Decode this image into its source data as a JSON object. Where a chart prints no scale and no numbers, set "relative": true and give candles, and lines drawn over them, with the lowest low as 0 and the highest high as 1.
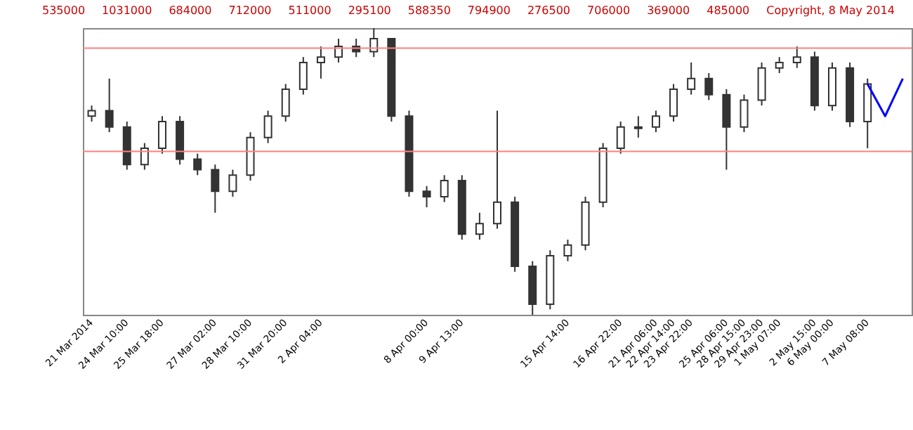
{
  "chart_data": {
    "type": "candlestick",
    "relative": true,
    "color": "#333333",
    "categories": [
      "21 Mar 2014",
      null,
      "24 Mar 10:00",
      null,
      "25 Mar 18:00",
      null,
      null,
      "27 Mar 02:00",
      null,
      "28 Mar 10:00",
      null,
      "31 Mar 20:00",
      null,
      "2 Apr 04:00",
      null,
      null,
      null,
      null,
      null,
      "8 Apr 00:00",
      null,
      "9 Apr 13:00",
      null,
      null,
      null,
      null,
      null,
      "15 Apr 14:00",
      null,
      null,
      "16 Apr 22:00",
      null,
      "21 Apr 06:00",
      "22 Apr 14:00",
      "23 Apr 22:00",
      null,
      "25 Apr 06:00",
      "28 Apr 15:00",
      "29 Apr 23:00",
      "1 May 07:00",
      null,
      "2 May 15:00",
      "6 May 00:00",
      null,
      "7 May 08:00",
      null,
      null
    ],
    "ohlc": [
      [
        0.693,
        0.73,
        0.674,
        0.712
      ],
      [
        0.712,
        0.824,
        0.637,
        0.655
      ],
      [
        0.655,
        0.674,
        0.506,
        0.524
      ],
      [
        0.524,
        0.599,
        0.506,
        0.581
      ],
      [
        0.581,
        0.693,
        0.562,
        0.674
      ],
      [
        0.674,
        0.693,
        0.524,
        0.543
      ],
      [
        0.543,
        0.562,
        0.487,
        0.506
      ],
      [
        0.506,
        0.524,
        0.356,
        0.431
      ],
      [
        0.431,
        0.506,
        0.412,
        0.487
      ],
      [
        0.487,
        0.637,
        0.468,
        0.618
      ],
      [
        0.618,
        0.712,
        0.599,
        0.693
      ],
      [
        0.693,
        0.805,
        0.674,
        0.787
      ],
      [
        0.787,
        0.899,
        0.768,
        0.88
      ],
      [
        0.88,
        0.936,
        0.824,
        0.899
      ],
      [
        0.899,
        0.963,
        0.88,
        0.936
      ],
      [
        0.936,
        0.963,
        0.899,
        0.918
      ],
      [
        0.918,
        1.0,
        0.899,
        0.963
      ],
      [
        0.963,
        0.963,
        0.674,
        0.693
      ],
      [
        0.693,
        0.712,
        0.412,
        0.431
      ],
      [
        0.431,
        0.449,
        0.375,
        0.412
      ],
      [
        0.412,
        0.487,
        0.393,
        0.468
      ],
      [
        0.468,
        0.487,
        0.262,
        0.281
      ],
      [
        0.281,
        0.356,
        0.262,
        0.318
      ],
      [
        0.318,
        0.712,
        0.3,
        0.393
      ],
      [
        0.393,
        0.412,
        0.15,
        0.169
      ],
      [
        0.169,
        0.187,
        0.0,
        0.037
      ],
      [
        0.037,
        0.225,
        0.019,
        0.206
      ],
      [
        0.206,
        0.262,
        0.187,
        0.243
      ],
      [
        0.243,
        0.412,
        0.225,
        0.393
      ],
      [
        0.393,
        0.599,
        0.375,
        0.581
      ],
      [
        0.581,
        0.674,
        0.562,
        0.655
      ],
      [
        0.655,
        0.693,
        0.618,
        0.65
      ],
      [
        0.655,
        0.712,
        0.637,
        0.693
      ],
      [
        0.693,
        0.805,
        0.674,
        0.787
      ],
      [
        0.787,
        0.88,
        0.768,
        0.824
      ],
      [
        0.824,
        0.843,
        0.749,
        0.768
      ],
      [
        0.768,
        0.787,
        0.506,
        0.655
      ],
      [
        0.655,
        0.768,
        0.637,
        0.749
      ],
      [
        0.749,
        0.88,
        0.73,
        0.861
      ],
      [
        0.861,
        0.899,
        0.843,
        0.88
      ],
      [
        0.88,
        0.936,
        0.861,
        0.899
      ],
      [
        0.899,
        0.918,
        0.712,
        0.73
      ],
      [
        0.73,
        0.88,
        0.712,
        0.861
      ],
      [
        0.861,
        0.88,
        0.655,
        0.674
      ],
      [
        0.674,
        0.824,
        0.581,
        0.805
      ],
      null,
      null
    ],
    "series": [
      {
        "type": "line",
        "color": "#0000ff",
        "values": [
          null,
          null,
          null,
          null,
          null,
          null,
          null,
          null,
          null,
          null,
          null,
          null,
          null,
          null,
          null,
          null,
          null,
          null,
          null,
          null,
          null,
          null,
          null,
          null,
          null,
          null,
          null,
          null,
          null,
          null,
          null,
          null,
          null,
          null,
          null,
          null,
          null,
          null,
          null,
          null,
          null,
          null,
          null,
          null,
          0.805,
          0.693,
          0.824
        ]
      }
    ],
    "ref_lines": [
      {
        "axis": "y",
        "value": 0.93,
        "color": "#ff8080"
      },
      {
        "axis": "y",
        "value": 0.57,
        "color": "#ff8080"
      }
    ],
    "annotations": [
      "535000",
      "1031000",
      "684000",
      "712000",
      "511000",
      "295100",
      "588350",
      "794900",
      "276500",
      "706000",
      "369000",
      "485000",
      "Copyright, 8 May 2014"
    ]
  }
}
